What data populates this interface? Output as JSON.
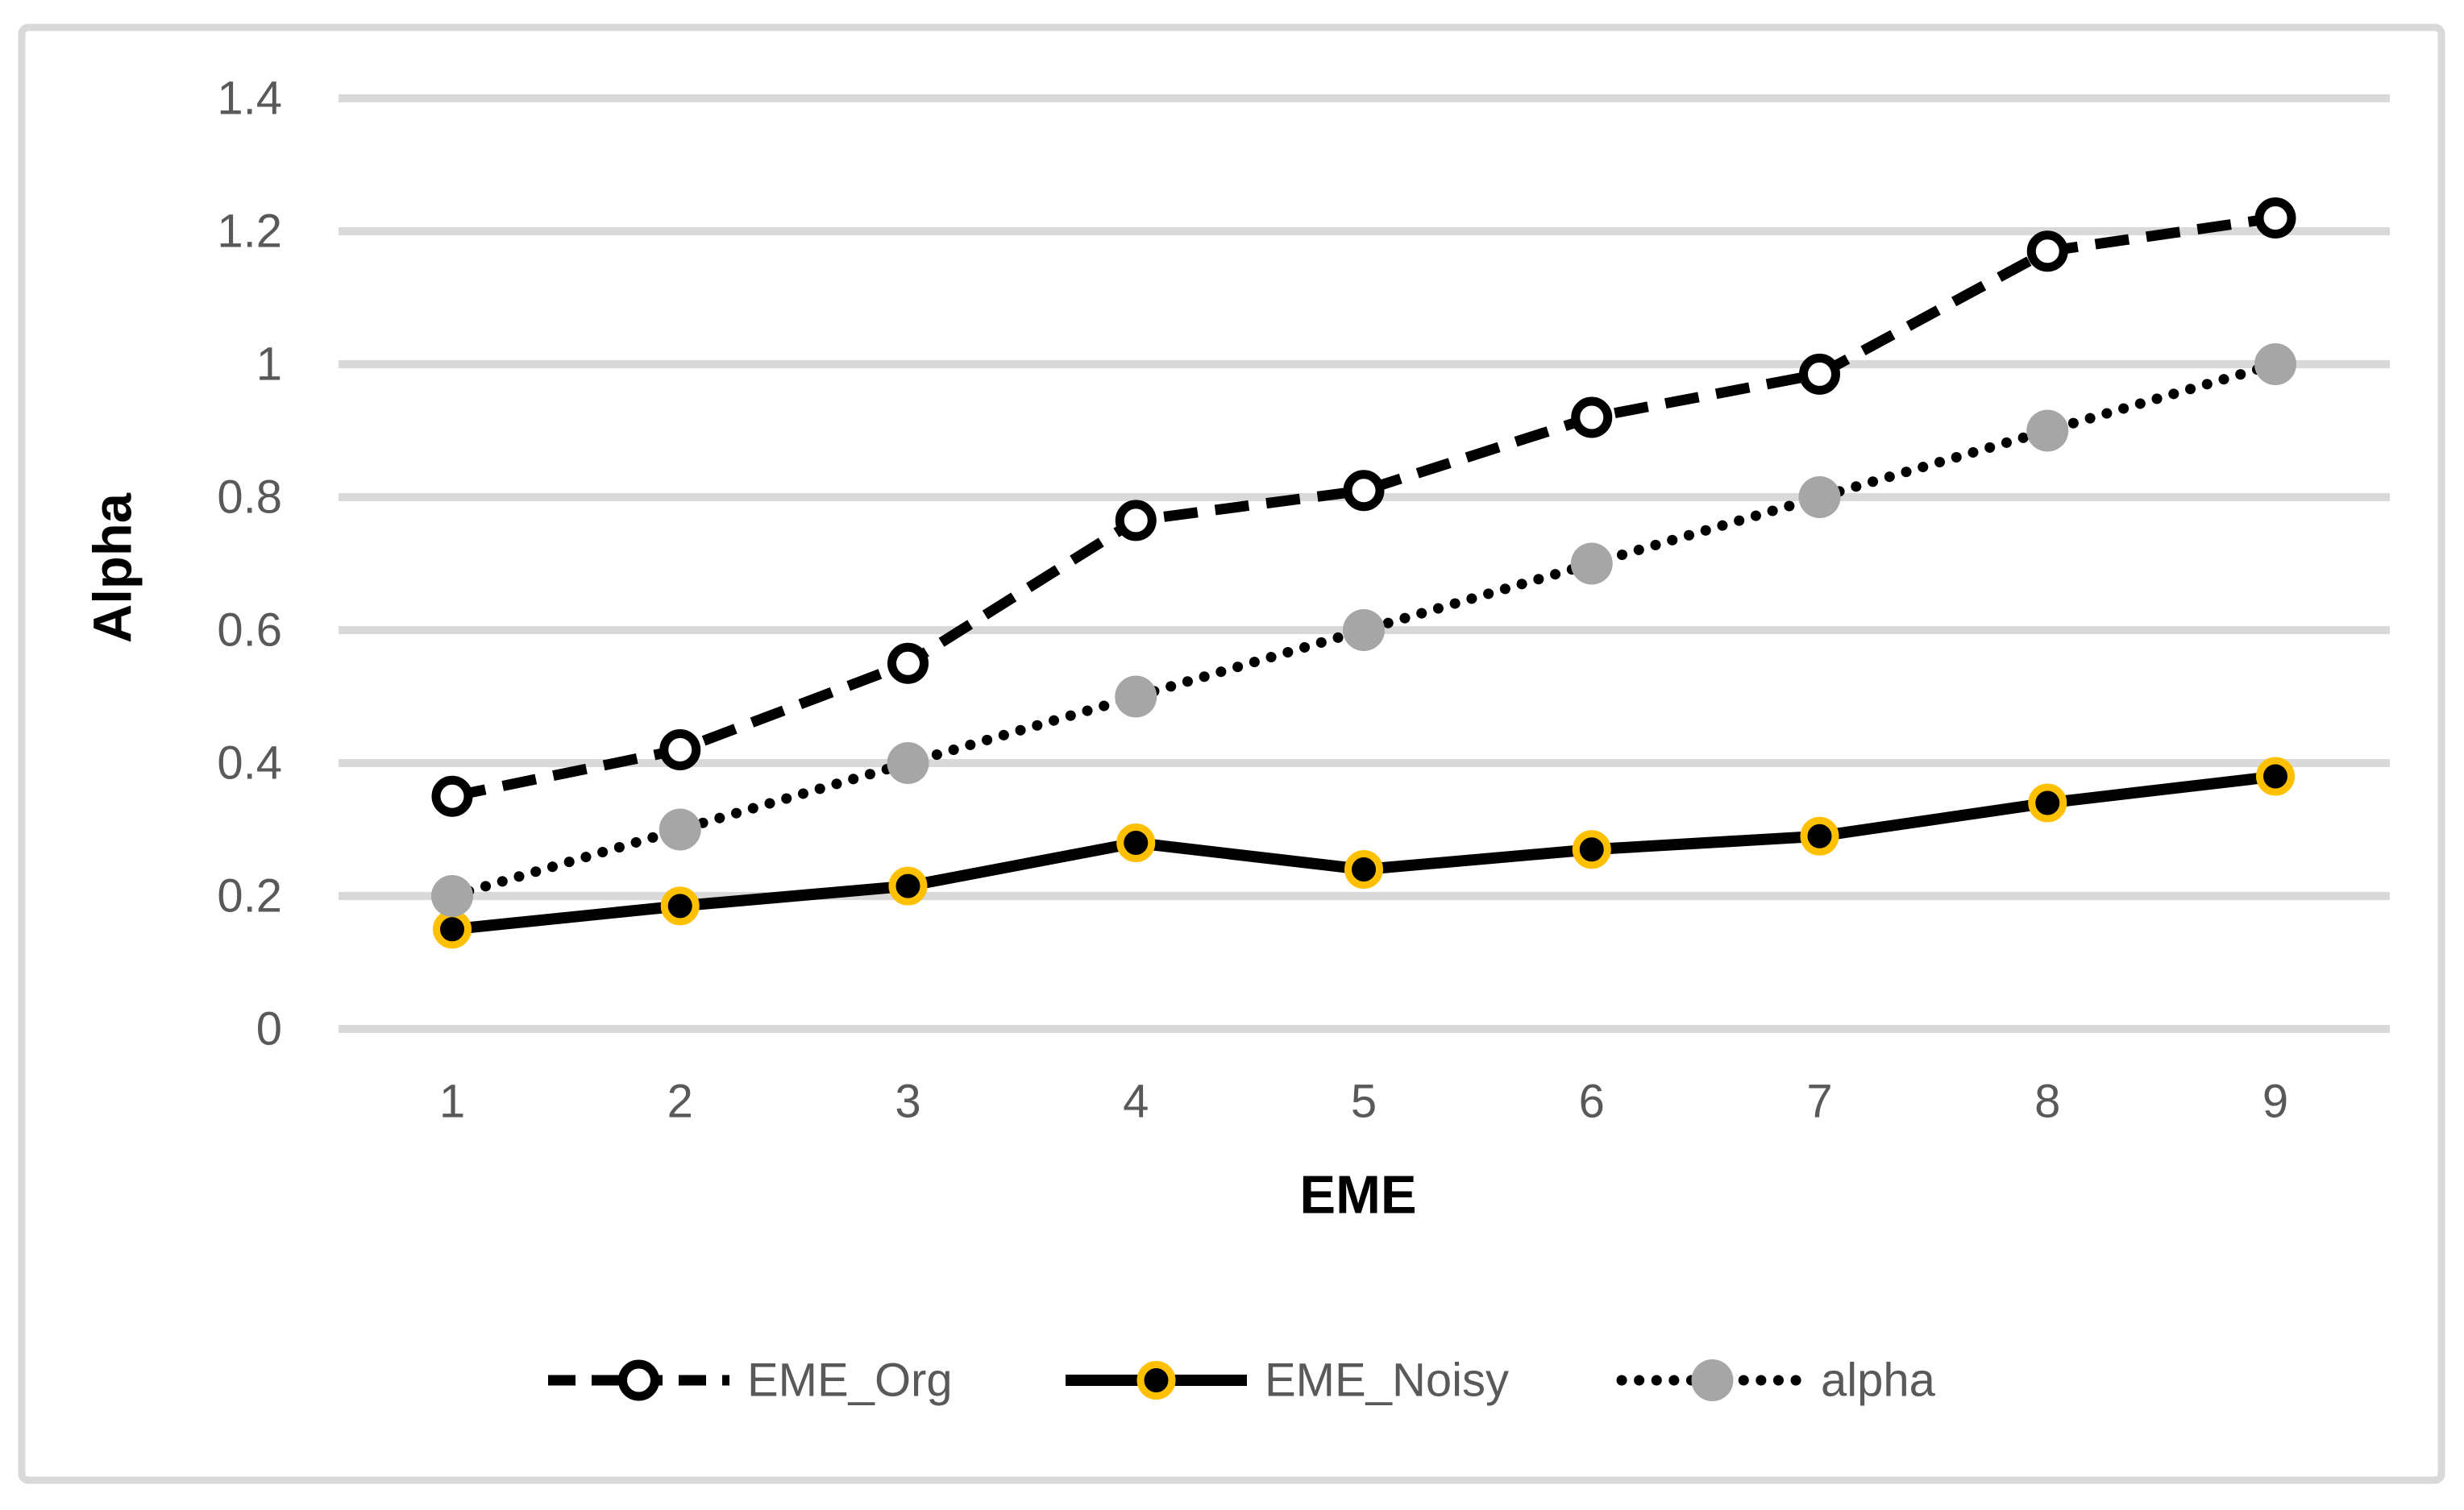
{
  "chart_data": {
    "type": "line",
    "title": "",
    "xlabel": "EME",
    "ylabel": "Alpha",
    "x_categories": [
      "1",
      "2",
      "3",
      "4",
      "5",
      "6",
      "7",
      "8",
      "9"
    ],
    "ylim": [
      0,
      1.4
    ],
    "yticks": [
      0,
      0.2,
      0.4,
      0.6,
      0.8,
      1.0,
      1.2,
      1.4
    ],
    "ytick_labels": [
      "0",
      "0.2",
      "0.4",
      "0.6",
      "0.8",
      "1",
      "1.2",
      "1.4"
    ],
    "grid": "horizontal",
    "legend_position": "bottom",
    "series": [
      {
        "name": "EME_Org",
        "values": [
          0.35,
          0.42,
          0.55,
          0.765,
          0.81,
          0.92,
          0.985,
          1.17,
          1.22
        ],
        "line_style": "dashed",
        "line_color": "#000000",
        "marker": "open-circle",
        "marker_fill": "#FFFFFF",
        "marker_stroke": "#000000"
      },
      {
        "name": "EME_Noisy",
        "values": [
          0.15,
          0.185,
          0.215,
          0.28,
          0.24,
          0.27,
          0.29,
          0.34,
          0.38
        ],
        "line_style": "solid",
        "line_color": "#000000",
        "marker": "filled-circle-gold-ring",
        "marker_fill": "#000000",
        "marker_stroke": "#FFC000"
      },
      {
        "name": "alpha",
        "values": [
          0.2,
          0.3,
          0.4,
          0.5,
          0.6,
          0.7,
          0.8,
          0.9,
          1.0
        ],
        "line_style": "dotted",
        "line_color": "#000000",
        "marker": "filled-circle",
        "marker_fill": "#A6A6A6",
        "marker_stroke": "none"
      }
    ],
    "colors": {
      "grid": "#D9D9D9",
      "frame": "#D9D9D9",
      "tick_text": "#595959",
      "legend_text": "#595959",
      "series_black": "#000000",
      "gold_ring": "#FFC000",
      "gray_marker": "#A6A6A6",
      "background": "#FFFFFF"
    }
  }
}
